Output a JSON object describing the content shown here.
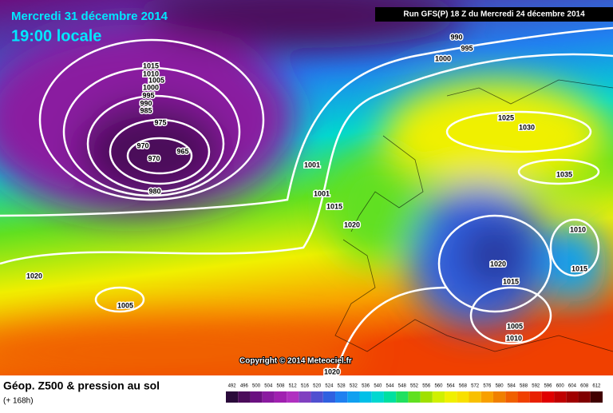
{
  "header": {
    "date": "Mercredi 31 décembre 2014",
    "time": "19:00 locale",
    "run": "Run GFS(P) 18 Z du Mercredi 24 décembre 2014"
  },
  "map": {
    "copyright": "Copyright © 2014 Meteociel.fr",
    "isobar_labels": [
      990,
      995,
      1000,
      1015,
      1010,
      1005,
      1000,
      995,
      990,
      985,
      975,
      970,
      965,
      970,
      980,
      1001,
      1001,
      1015,
      1020,
      1025,
      1030,
      1035,
      1010,
      1015,
      1020,
      1015,
      1005,
      1010,
      1020,
      1005,
      1020
    ]
  },
  "footer": {
    "title": "Géop. Z500 & pression au sol",
    "lead": "(+ 168h)"
  },
  "legend": {
    "values": [
      492,
      496,
      500,
      504,
      508,
      512,
      516,
      520,
      524,
      528,
      532,
      536,
      540,
      544,
      548,
      552,
      556,
      560,
      564,
      568,
      572,
      576,
      580,
      584,
      588,
      592,
      596,
      600,
      604,
      608,
      612
    ],
    "colors": [
      "#2a0a3a",
      "#4b0c5a",
      "#6a1080",
      "#8a1aa0",
      "#a020b0",
      "#b030c0",
      "#8040c0",
      "#5050d0",
      "#3060e0",
      "#2080f0",
      "#10a0f0",
      "#00c0e8",
      "#00d8d0",
      "#00e0a0",
      "#20e060",
      "#60e020",
      "#a0e000",
      "#d0f000",
      "#f0f000",
      "#f8e000",
      "#f8c000",
      "#f8a000",
      "#f08000",
      "#f06000",
      "#f04000",
      "#e82000",
      "#e00000",
      "#c00000",
      "#a00000",
      "#800000",
      "#400000"
    ]
  }
}
